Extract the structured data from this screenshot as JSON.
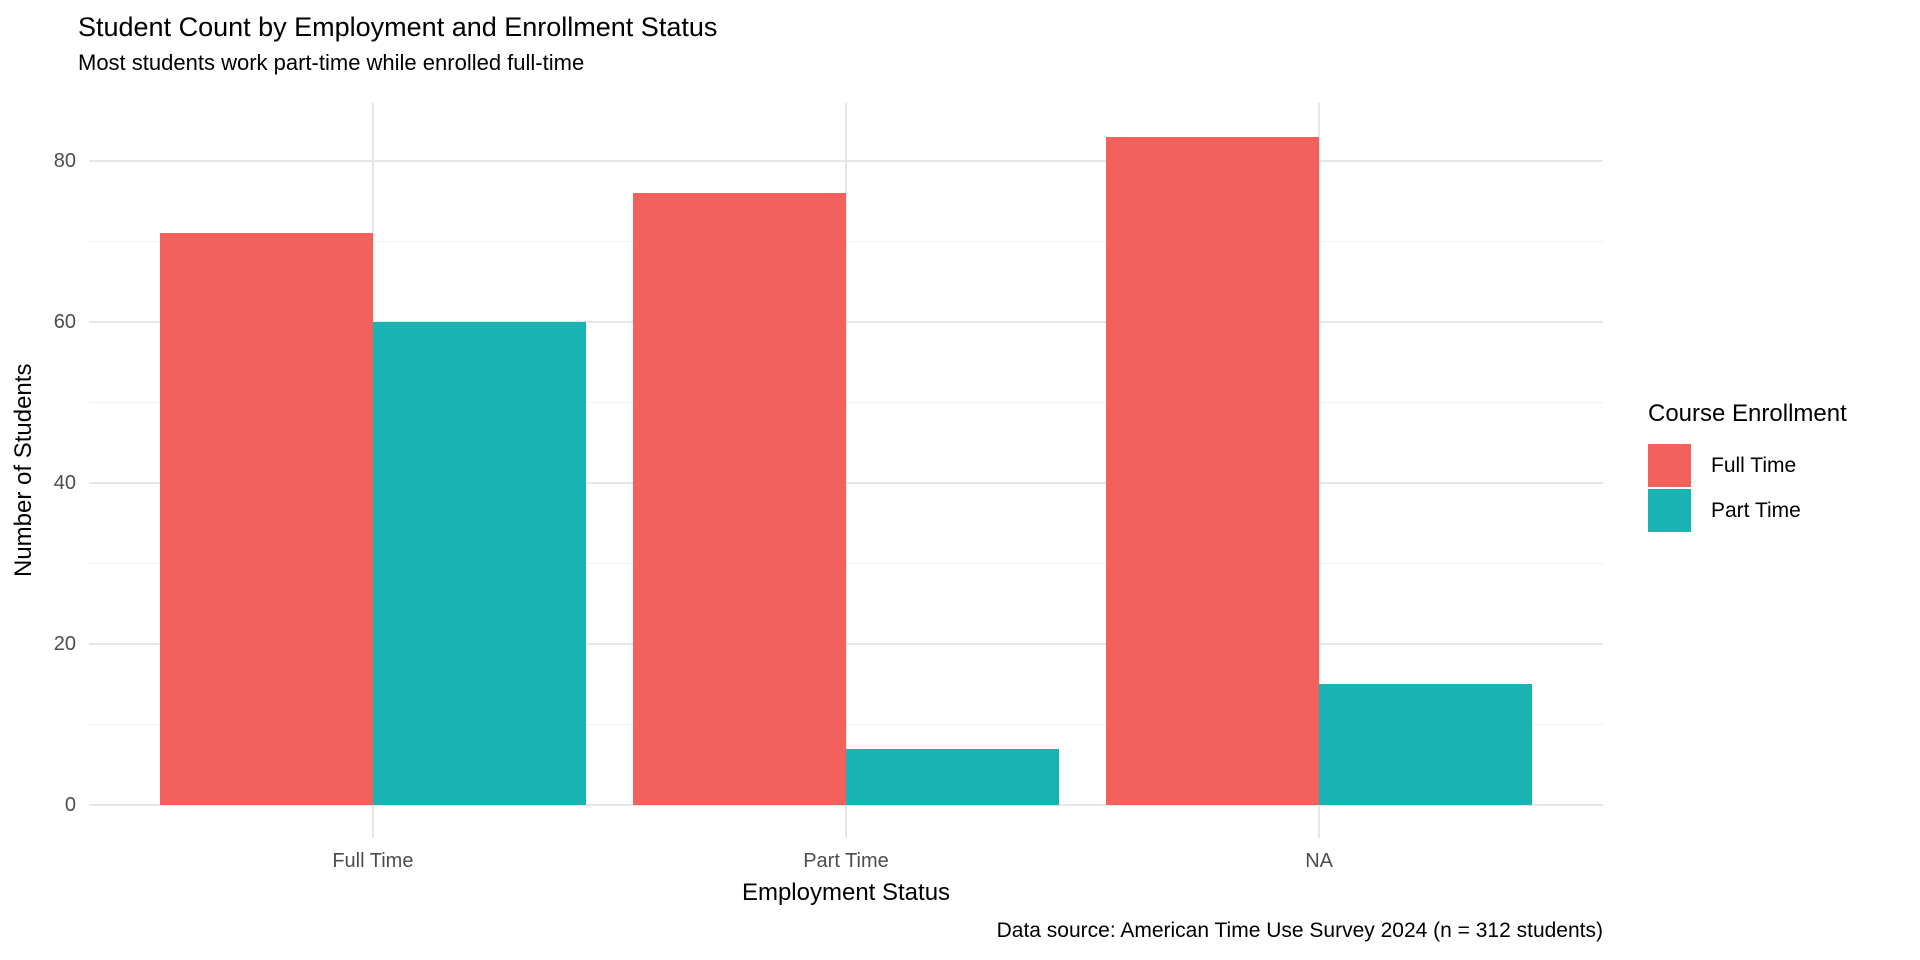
{
  "title": "Student Count by Employment and Enrollment Status",
  "subtitle": "Most students work part-time while enrolled full-time",
  "caption": "Data source: American Time Use Survey 2024 (n = 312 students)",
  "chart_data": {
    "type": "bar",
    "mode": "grouped",
    "title": "Student Count by Employment and Enrollment Status",
    "subtitle": "Most students work part-time while enrolled full-time",
    "caption": "Data source: American Time Use Survey 2024 (n = 312 students)",
    "categories": [
      "Full Time",
      "Part Time",
      "NA"
    ],
    "series": [
      {
        "name": "Full Time",
        "color": "#F3615C",
        "values": [
          71,
          76,
          83
        ]
      },
      {
        "name": "Part Time",
        "color": "#1AB3B3",
        "values": [
          60,
          7,
          15
        ]
      }
    ],
    "xlabel": "Employment Status",
    "ylabel": "Number of Students",
    "ylim": [
      0,
      87
    ],
    "yticks": [
      0,
      20,
      40,
      60,
      80
    ],
    "yticks_minor": [
      10,
      30,
      50,
      70
    ],
    "grid": "major and minor horizontal, major vertical at category centers",
    "legend": {
      "title": "Course Enrollment",
      "position": "right",
      "entries": [
        "Full Time",
        "Part Time"
      ]
    }
  }
}
